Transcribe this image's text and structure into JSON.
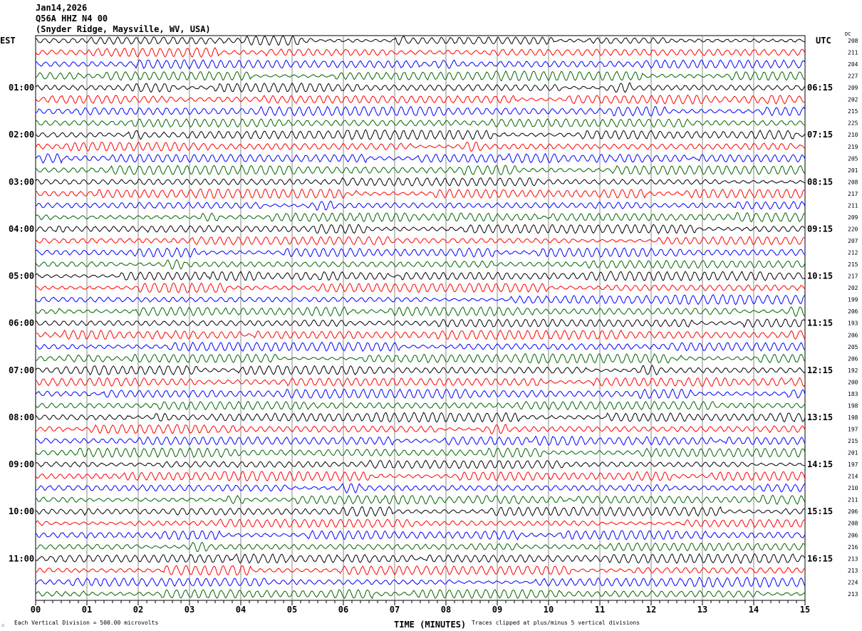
{
  "header": {
    "date": "Jan14,2026",
    "station": "Q56A HHZ N4 00",
    "location": "(Snyder Ridge, Maysville, WV, USA)"
  },
  "chart_data": {
    "type": "line",
    "subtype": "helicorder",
    "left_axis_label": "EST",
    "right_axis_label": "UTC",
    "dc_label": "DC",
    "xlabel": "TIME (MINUTES)",
    "xlim": [
      0,
      15
    ],
    "x_ticks": [
      "00",
      "01",
      "02",
      "03",
      "04",
      "05",
      "06",
      "07",
      "08",
      "09",
      "10",
      "11",
      "12",
      "13",
      "14",
      "15"
    ],
    "grid": true,
    "trace_colors": [
      "#000000",
      "#ff0000",
      "#0000ff",
      "#006400"
    ],
    "left_hour_labels": [
      "01:00",
      "02:00",
      "03:00",
      "04:00",
      "05:00",
      "06:00",
      "07:00",
      "08:00",
      "09:00",
      "10:00",
      "11:00"
    ],
    "right_hour_labels": [
      "06:15",
      "07:15",
      "08:15",
      "09:15",
      "10:15",
      "11:15",
      "12:15",
      "13:15",
      "14:15",
      "15:15",
      "16:15"
    ],
    "dc_values": [
      "208",
      "211",
      "204",
      "227",
      "209",
      "202",
      "215",
      "225",
      "210",
      "219",
      "205",
      "201",
      "208",
      "217",
      "211",
      "209",
      "220",
      "207",
      "212",
      "215",
      "217",
      "202",
      "199",
      "206",
      "193",
      "206",
      "205",
      "206",
      "192",
      "200",
      "183",
      "198",
      "198",
      "197",
      "215",
      "201",
      "197",
      "214",
      "210",
      "211",
      "206",
      "208",
      "206",
      "216",
      "213",
      "213",
      "224",
      "213"
    ],
    "footer_left": "Each Vertical Division =  500.00 microvolts",
    "footer_right": "Traces clipped at plus/minus 5 vertical divisions",
    "corner_mark": "∴"
  }
}
